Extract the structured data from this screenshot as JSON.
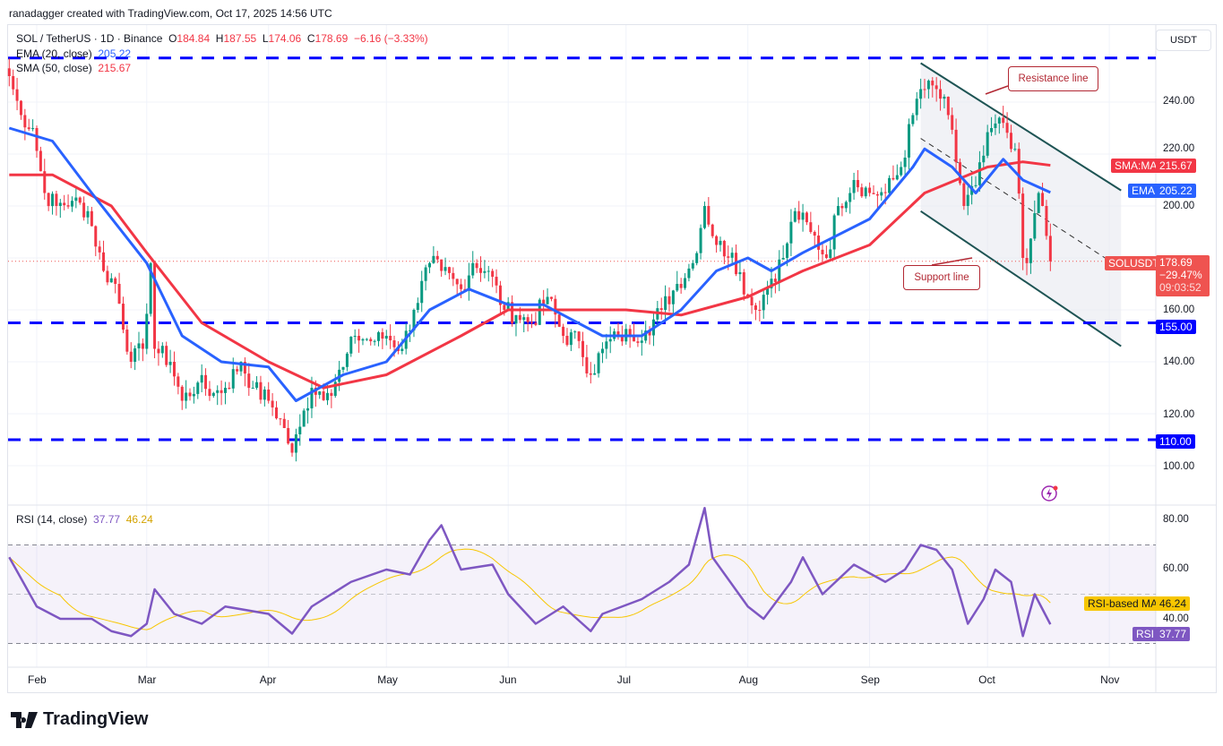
{
  "credit": "ranadagger created with TradingView.com, Oct 17, 2025 14:56 UTC",
  "symbol": {
    "title": "SOL / TetherUS · 1D · Binance",
    "o_label": "O",
    "o": "184.84",
    "h_label": "H",
    "h": "187.55",
    "l_label": "L",
    "l": "174.06",
    "c_label": "C",
    "c": "178.69",
    "change": "−6.16 (−3.33%)"
  },
  "indicators": {
    "ema_label": "EMA (20, close)",
    "ema_value": "205.22",
    "sma_label": "SMA (50, close)",
    "sma_value": "215.67",
    "rsi_label": "RSI (14, close)",
    "rsi_value": "37.77",
    "rsi_ma_value": "46.24"
  },
  "currency_button": "USDT",
  "price_tags": {
    "sma_name": "SMA:MA",
    "sma": "215.67",
    "ema_name": "EMA",
    "ema": "205.22",
    "sym_name": "SOLUSDT",
    "last": "178.69",
    "pct": "−29.47%",
    "countdown": "09:03:52",
    "level_155": "155.00",
    "level_110": "110.00",
    "rsi_ma_name": "RSI-based MA",
    "rsi_ma": "46.24",
    "rsi_name": "RSI",
    "rsi": "37.77"
  },
  "annotations": {
    "resistance": "Resistance line",
    "support": "Support line"
  },
  "colors": {
    "up": "#089981",
    "down": "#f23645",
    "ema": "#2962ff",
    "sma": "#f23645",
    "rsi": "#7e57c2",
    "rsi_ma": "#f7c600",
    "levels": "#0000ff",
    "channel": "#1e5454"
  },
  "logo": "TradingView",
  "chart_data": [
    {
      "type": "candlestick",
      "title": "SOL / TetherUS · 1D · Binance",
      "ylim": [
        90,
        262
      ],
      "yticks": [
        "240.00",
        "220.00",
        "200.00",
        "160.00",
        "140.00",
        "120.00",
        "100.00"
      ],
      "xticks": [
        "Feb",
        "Mar",
        "Apr",
        "May",
        "Jun",
        "Jul",
        "Aug",
        "Sep",
        "Oct",
        "Nov"
      ],
      "horizontal_levels": [
        257,
        155,
        110
      ],
      "close_approx": [
        [
          "2025-01-25",
          250
        ],
        [
          "2025-01-28",
          235
        ],
        [
          "2025-01-31",
          230
        ],
        [
          "2025-02-03",
          205
        ],
        [
          "2025-02-06",
          200
        ],
        [
          "2025-02-10",
          202
        ],
        [
          "2025-02-14",
          198
        ],
        [
          "2025-02-18",
          175
        ],
        [
          "2025-02-21",
          170
        ],
        [
          "2025-02-25",
          140
        ],
        [
          "2025-02-28",
          145
        ],
        [
          "2025-03-02",
          178
        ],
        [
          "2025-03-03",
          145
        ],
        [
          "2025-03-07",
          140
        ],
        [
          "2025-03-10",
          125
        ],
        [
          "2025-03-14",
          132
        ],
        [
          "2025-03-18",
          128
        ],
        [
          "2025-03-21",
          130
        ],
        [
          "2025-03-25",
          140
        ],
        [
          "2025-03-28",
          130
        ],
        [
          "2025-04-01",
          125
        ],
        [
          "2025-04-04",
          118
        ],
        [
          "2025-04-07",
          105
        ],
        [
          "2025-04-09",
          115
        ],
        [
          "2025-04-12",
          130
        ],
        [
          "2025-04-16",
          128
        ],
        [
          "2025-04-20",
          138
        ],
        [
          "2025-04-23",
          150
        ],
        [
          "2025-04-28",
          148
        ],
        [
          "2025-05-01",
          150
        ],
        [
          "2025-05-05",
          145
        ],
        [
          "2025-05-08",
          160
        ],
        [
          "2025-05-12",
          178
        ],
        [
          "2025-05-15",
          175
        ],
        [
          "2025-05-20",
          168
        ],
        [
          "2025-05-23",
          178
        ],
        [
          "2025-05-27",
          175
        ],
        [
          "2025-05-31",
          160
        ],
        [
          "2025-06-03",
          158
        ],
        [
          "2025-06-07",
          155
        ],
        [
          "2025-06-11",
          165
        ],
        [
          "2025-06-15",
          150
        ],
        [
          "2025-06-19",
          148
        ],
        [
          "2025-06-22",
          135
        ],
        [
          "2025-06-25",
          145
        ],
        [
          "2025-06-29",
          150
        ],
        [
          "2025-07-02",
          150
        ],
        [
          "2025-07-06",
          152
        ],
        [
          "2025-07-10",
          160
        ],
        [
          "2025-07-14",
          170
        ],
        [
          "2025-07-18",
          178
        ],
        [
          "2025-07-21",
          200
        ],
        [
          "2025-07-24",
          185
        ],
        [
          "2025-07-28",
          182
        ],
        [
          "2025-08-01",
          165
        ],
        [
          "2025-08-03",
          160
        ],
        [
          "2025-08-07",
          172
        ],
        [
          "2025-08-10",
          180
        ],
        [
          "2025-08-13",
          198
        ],
        [
          "2025-08-17",
          190
        ],
        [
          "2025-08-21",
          180
        ],
        [
          "2025-08-24",
          200
        ],
        [
          "2025-08-28",
          210
        ],
        [
          "2025-09-01",
          205
        ],
        [
          "2025-09-05",
          205
        ],
        [
          "2025-09-09",
          215
        ],
        [
          "2025-09-12",
          235
        ],
        [
          "2025-09-14",
          245
        ],
        [
          "2025-09-18",
          245
        ],
        [
          "2025-09-21",
          235
        ],
        [
          "2025-09-25",
          200
        ],
        [
          "2025-09-28",
          208
        ],
        [
          "2025-10-02",
          230
        ],
        [
          "2025-10-05",
          232
        ],
        [
          "2025-10-08",
          222
        ],
        [
          "2025-10-10",
          180
        ],
        [
          "2025-10-11",
          178
        ],
        [
          "2025-10-14",
          205
        ],
        [
          "2025-10-15",
          200
        ],
        [
          "2025-10-17",
          178.69
        ]
      ],
      "series": [
        {
          "name": "EMA (20, close)",
          "points": [
            [
              "2025-01-25",
              230
            ],
            [
              "2025-02-05",
              225
            ],
            [
              "2025-02-15",
              205
            ],
            [
              "2025-03-01",
              178
            ],
            [
              "2025-03-10",
              150
            ],
            [
              "2025-03-20",
              140
            ],
            [
              "2025-04-01",
              138
            ],
            [
              "2025-04-08",
              125
            ],
            [
              "2025-04-20",
              135
            ],
            [
              "2025-05-01",
              140
            ],
            [
              "2025-05-12",
              160
            ],
            [
              "2025-05-22",
              168
            ],
            [
              "2025-06-01",
              162
            ],
            [
              "2025-06-10",
              162
            ],
            [
              "2025-06-25",
              150
            ],
            [
              "2025-07-05",
              150
            ],
            [
              "2025-07-15",
              160
            ],
            [
              "2025-07-24",
              175
            ],
            [
              "2025-08-01",
              180
            ],
            [
              "2025-08-07",
              175
            ],
            [
              "2025-08-15",
              182
            ],
            [
              "2025-09-01",
              195
            ],
            [
              "2025-09-12",
              215
            ],
            [
              "2025-09-15",
              222
            ],
            [
              "2025-09-22",
              215
            ],
            [
              "2025-09-28",
              205
            ],
            [
              "2025-10-05",
              218
            ],
            [
              "2025-10-10",
              210
            ],
            [
              "2025-10-17",
              205.22
            ]
          ]
        },
        {
          "name": "SMA (50, close)",
          "points": [
            [
              "2025-01-25",
              212
            ],
            [
              "2025-02-05",
              212
            ],
            [
              "2025-02-20",
              200
            ],
            [
              "2025-03-01",
              182
            ],
            [
              "2025-03-15",
              155
            ],
            [
              "2025-04-01",
              140
            ],
            [
              "2025-04-15",
              130
            ],
            [
              "2025-05-01",
              135
            ],
            [
              "2025-05-20",
              150
            ],
            [
              "2025-06-01",
              160
            ],
            [
              "2025-06-15",
              160
            ],
            [
              "2025-07-01",
              160
            ],
            [
              "2025-07-15",
              158
            ],
            [
              "2025-08-01",
              165
            ],
            [
              "2025-08-15",
              175
            ],
            [
              "2025-09-01",
              185
            ],
            [
              "2025-09-15",
              205
            ],
            [
              "2025-10-01",
              215
            ],
            [
              "2025-10-10",
              217
            ],
            [
              "2025-10-17",
              215.67
            ]
          ]
        }
      ],
      "channel": {
        "resistance": [
          [
            "2025-09-14",
            255
          ],
          [
            "2025-11-04",
            206
          ]
        ],
        "support": [
          [
            "2025-09-14",
            198
          ],
          [
            "2025-11-04",
            146
          ]
        ],
        "midline": [
          [
            "2025-09-14",
            226
          ],
          [
            "2025-11-04",
            176
          ]
        ]
      }
    },
    {
      "type": "line",
      "title": "RSI (14, close)",
      "ylim": [
        25,
        85
      ],
      "yticks": [
        "80.00",
        "60.00",
        "40.00"
      ],
      "bands": [
        30,
        70
      ],
      "series": [
        {
          "name": "RSI",
          "points": [
            [
              "2025-01-25",
              65
            ],
            [
              "2025-02-01",
              45
            ],
            [
              "2025-02-07",
              40
            ],
            [
              "2025-02-15",
              40
            ],
            [
              "2025-02-20",
              35
            ],
            [
              "2025-02-25",
              33
            ],
            [
              "2025-03-01",
              38
            ],
            [
              "2025-03-03",
              52
            ],
            [
              "2025-03-08",
              42
            ],
            [
              "2025-03-15",
              38
            ],
            [
              "2025-03-21",
              45
            ],
            [
              "2025-04-01",
              42
            ],
            [
              "2025-04-07",
              34
            ],
            [
              "2025-04-12",
              45
            ],
            [
              "2025-04-22",
              55
            ],
            [
              "2025-05-01",
              60
            ],
            [
              "2025-05-07",
              58
            ],
            [
              "2025-05-12",
              72
            ],
            [
              "2025-05-15",
              78
            ],
            [
              "2025-05-20",
              60
            ],
            [
              "2025-05-28",
              62
            ],
            [
              "2025-06-01",
              50
            ],
            [
              "2025-06-08",
              38
            ],
            [
              "2025-06-15",
              45
            ],
            [
              "2025-06-22",
              35
            ],
            [
              "2025-06-25",
              42
            ],
            [
              "2025-07-05",
              48
            ],
            [
              "2025-07-12",
              55
            ],
            [
              "2025-07-17",
              62
            ],
            [
              "2025-07-21",
              85
            ],
            [
              "2025-07-23",
              65
            ],
            [
              "2025-08-01",
              45
            ],
            [
              "2025-08-05",
              40
            ],
            [
              "2025-08-12",
              55
            ],
            [
              "2025-08-15",
              65
            ],
            [
              "2025-08-20",
              50
            ],
            [
              "2025-08-28",
              62
            ],
            [
              "2025-09-05",
              55
            ],
            [
              "2025-09-10",
              60
            ],
            [
              "2025-09-14",
              70
            ],
            [
              "2025-09-18",
              68
            ],
            [
              "2025-09-22",
              60
            ],
            [
              "2025-09-26",
              38
            ],
            [
              "2025-09-30",
              48
            ],
            [
              "2025-10-03",
              60
            ],
            [
              "2025-10-07",
              55
            ],
            [
              "2025-10-10",
              33
            ],
            [
              "2025-10-13",
              50
            ],
            [
              "2025-10-17",
              37.77
            ]
          ]
        },
        {
          "name": "RSI-based MA",
          "last": 46.24
        }
      ]
    }
  ]
}
